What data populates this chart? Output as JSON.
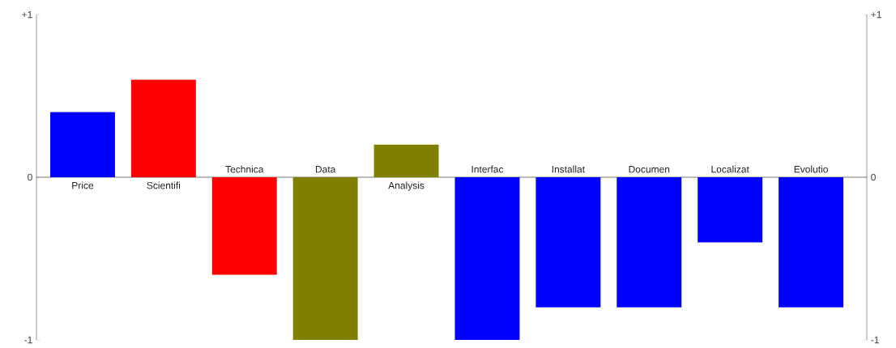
{
  "chart_data": {
    "type": "bar",
    "categories": [
      "Price",
      "Scientifi",
      "Technica",
      "Data",
      "Analysis",
      "Interfac",
      "Installat",
      "Documen",
      "Localizat",
      "Evolutio"
    ],
    "values": [
      0.4,
      0.6,
      -0.6,
      -1,
      0.2,
      -1,
      -0.8,
      -0.8,
      -0.4,
      -0.8
    ],
    "colors": [
      "#0000ff",
      "#ff0000",
      "#ff0000",
      "#808000",
      "#808000",
      "#0000ff",
      "#0000ff",
      "#0000ff",
      "#0000ff",
      "#0000ff"
    ],
    "ylim": [
      -1,
      1
    ],
    "yticks": [
      {
        "value": 1,
        "label": "+1"
      },
      0,
      -1
    ],
    "y2lim": [
      -1,
      1
    ],
    "y2ticks": [
      {
        "value": 1,
        "label": "+1"
      },
      0,
      -1
    ],
    "grid": false
  }
}
